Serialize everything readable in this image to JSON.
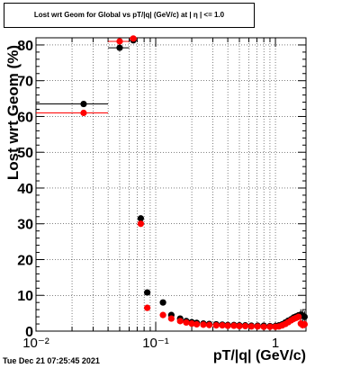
{
  "title": "Lost wrt Geom for Global vs pT/|q| (GeV/c) at | η | <= 1.0",
  "timestamp": "Tue Dec 21 07:25:45 2021",
  "chart_data": {
    "type": "scatter",
    "title": "Lost wrt Geom for Global vs pT/|q| (GeV/c) at | η | <= 1.0",
    "xlabel": "pT/|q| (GeV/c)",
    "ylabel": "Lost wrt Geom (%)",
    "xscale": "log",
    "xlim": [
      0.01,
      1.8
    ],
    "ylim": [
      0,
      82
    ],
    "grid": true,
    "legend": "none",
    "x_tick_labels": [
      "10⁻²",
      "10⁻¹",
      "1"
    ],
    "x_tick_values": [
      0.01,
      0.1,
      1
    ],
    "y_ticks": [
      0,
      10,
      20,
      30,
      40,
      50,
      60,
      70,
      80
    ],
    "series": [
      {
        "color": "#000000",
        "points": [
          {
            "x": 0.025,
            "y": 63.5,
            "xlo": 0.01,
            "xhi": 0.04
          },
          {
            "x": 0.05,
            "y": 79.2,
            "xlo": 0.04,
            "xhi": 0.06
          },
          {
            "x": 0.065,
            "y": 81.3,
            "xlo": 0.06,
            "xhi": 0.07
          },
          {
            "x": 0.075,
            "y": 31.5
          },
          {
            "x": 0.085,
            "y": 10.8
          },
          {
            "x": 0.115,
            "y": 8.0
          },
          {
            "x": 0.135,
            "y": 4.5
          },
          {
            "x": 0.16,
            "y": 3.5
          },
          {
            "x": 0.18,
            "y": 2.8
          },
          {
            "x": 0.2,
            "y": 2.5
          },
          {
            "x": 0.22,
            "y": 2.3
          },
          {
            "x": 0.25,
            "y": 2.1
          },
          {
            "x": 0.28,
            "y": 2.0
          },
          {
            "x": 0.32,
            "y": 1.9
          },
          {
            "x": 0.36,
            "y": 1.8
          },
          {
            "x": 0.4,
            "y": 1.7
          },
          {
            "x": 0.45,
            "y": 1.7
          },
          {
            "x": 0.5,
            "y": 1.6
          },
          {
            "x": 0.56,
            "y": 1.6
          },
          {
            "x": 0.63,
            "y": 1.5
          },
          {
            "x": 0.71,
            "y": 1.5
          },
          {
            "x": 0.8,
            "y": 1.5
          },
          {
            "x": 0.9,
            "y": 1.4
          },
          {
            "x": 1.0,
            "y": 1.4
          },
          {
            "x": 1.07,
            "y": 1.6
          },
          {
            "x": 1.14,
            "y": 1.9
          },
          {
            "x": 1.21,
            "y": 2.4
          },
          {
            "x": 1.28,
            "y": 2.9
          },
          {
            "x": 1.35,
            "y": 3.3
          },
          {
            "x": 1.42,
            "y": 3.8
          },
          {
            "x": 1.49,
            "y": 4.1
          },
          {
            "x": 1.56,
            "y": 4.4
          },
          {
            "x": 1.63,
            "y": 4.6,
            "yerr": 1.5
          },
          {
            "x": 1.69,
            "y": 4.3,
            "yerr": 1.8
          },
          {
            "x": 1.75,
            "y": 4.0,
            "yerr": 1.6
          }
        ]
      },
      {
        "color": "#ff0000",
        "points": [
          {
            "x": 0.025,
            "y": 61.0,
            "xlo": 0.01,
            "xhi": 0.04
          },
          {
            "x": 0.05,
            "y": 81.0,
            "xlo": 0.04,
            "xhi": 0.06
          },
          {
            "x": 0.065,
            "y": 81.8,
            "xlo": 0.06,
            "xhi": 0.07
          },
          {
            "x": 0.075,
            "y": 30.0
          },
          {
            "x": 0.085,
            "y": 6.5
          },
          {
            "x": 0.115,
            "y": 4.5
          },
          {
            "x": 0.135,
            "y": 3.5
          },
          {
            "x": 0.16,
            "y": 2.8
          },
          {
            "x": 0.18,
            "y": 2.4
          },
          {
            "x": 0.2,
            "y": 2.1
          },
          {
            "x": 0.22,
            "y": 1.9
          },
          {
            "x": 0.25,
            "y": 1.8
          },
          {
            "x": 0.28,
            "y": 1.7
          },
          {
            "x": 0.32,
            "y": 1.6
          },
          {
            "x": 0.36,
            "y": 1.6
          },
          {
            "x": 0.4,
            "y": 1.5
          },
          {
            "x": 0.45,
            "y": 1.5
          },
          {
            "x": 0.5,
            "y": 1.4
          },
          {
            "x": 0.56,
            "y": 1.4
          },
          {
            "x": 0.63,
            "y": 1.3
          },
          {
            "x": 0.71,
            "y": 1.3
          },
          {
            "x": 0.8,
            "y": 1.2
          },
          {
            "x": 0.9,
            "y": 1.2
          },
          {
            "x": 1.0,
            "y": 1.2
          },
          {
            "x": 1.07,
            "y": 1.3
          },
          {
            "x": 1.14,
            "y": 1.6
          },
          {
            "x": 1.21,
            "y": 2.0
          },
          {
            "x": 1.28,
            "y": 2.5
          },
          {
            "x": 1.35,
            "y": 3.0
          },
          {
            "x": 1.42,
            "y": 3.4
          },
          {
            "x": 1.49,
            "y": 3.7
          },
          {
            "x": 1.56,
            "y": 4.0
          },
          {
            "x": 1.63,
            "y": 2.1,
            "yerr": 1.2
          },
          {
            "x": 1.69,
            "y": 1.7,
            "yerr": 1.0
          },
          {
            "x": 1.75,
            "y": 1.9,
            "yerr": 1.1
          }
        ]
      }
    ]
  }
}
